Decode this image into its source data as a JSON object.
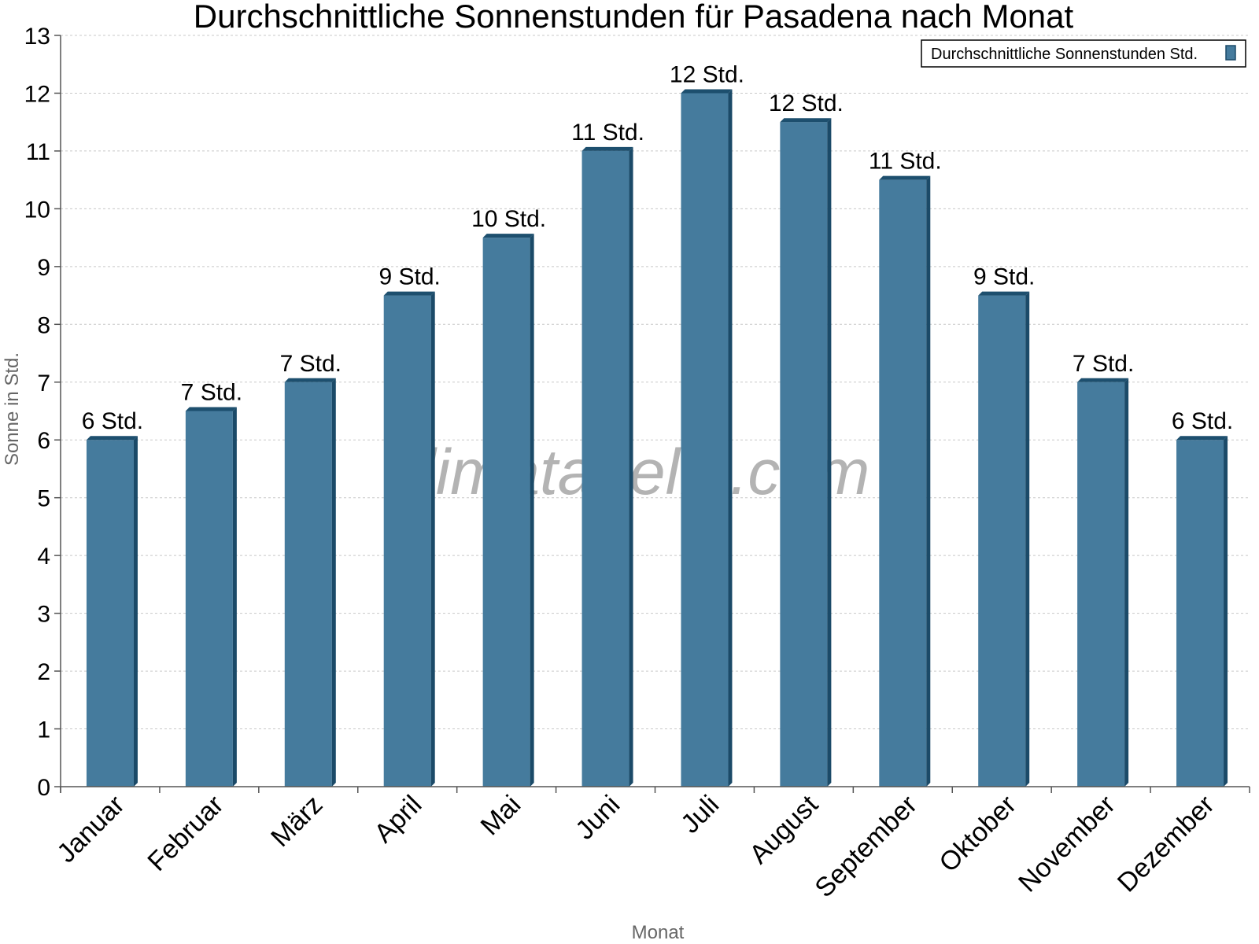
{
  "chart_data": {
    "type": "bar",
    "title": "Durchschnittliche Sonnenstunden für Pasadena nach Monat",
    "xlabel": "Monat",
    "ylabel": "Sonne in Std.",
    "ylim": [
      0,
      13
    ],
    "yticks": [
      0,
      1,
      2,
      3,
      4,
      5,
      6,
      7,
      8,
      9,
      10,
      11,
      12,
      13
    ],
    "grid": true,
    "legend_position": "top-right",
    "categories": [
      "Januar",
      "Februar",
      "März",
      "April",
      "Mai",
      "Juni",
      "Juli",
      "August",
      "September",
      "Oktober",
      "November",
      "Dezember"
    ],
    "series": [
      {
        "name": "Durchschnittliche Sonnenstunden Std.",
        "color": "#457b9d",
        "values": [
          6,
          6.5,
          7,
          8.5,
          9.5,
          11,
          12,
          11.5,
          10.5,
          8.5,
          7,
          6
        ],
        "data_labels": [
          "6 Std.",
          "7 Std.",
          "7 Std.",
          "9 Std.",
          "10 Std.",
          "11 Std.",
          "12 Std.",
          "12 Std.",
          "11 Std.",
          "9 Std.",
          "7 Std.",
          "6 Std."
        ]
      }
    ],
    "watermark": "klimatabelle.com"
  }
}
